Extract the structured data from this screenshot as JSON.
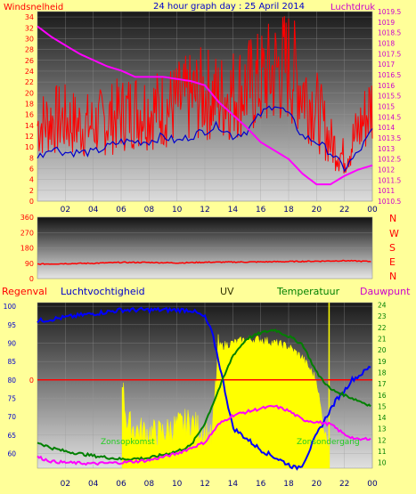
{
  "header": {
    "left_label": "Windsnelheid",
    "title": "24 hour graph day : 25 April 2014",
    "right_label": "Luchtdruk"
  },
  "mid_header": {
    "regenval": "Regenval",
    "vocht": "Luchtvochtigheid",
    "uv": "UV",
    "temp": "Temperatuur",
    "dauw": "Dauwpunt"
  },
  "annotations": {
    "sunrise": "Zonsopkomst",
    "sunset": "Zonsondergang"
  },
  "colors": {
    "wind": "#ff0000",
    "wind_avg": "#0000cc",
    "pressure": "#ff00ff",
    "humidity": "#0000ff",
    "temperature": "#008000",
    "dewpoint": "#ff00ff",
    "uv": "#ffff00",
    "rain": "#ff0000",
    "label_red": "#ff0000",
    "label_magenta": "#cc00cc",
    "label_blue": "#0000cc",
    "label_green": "#008000"
  },
  "chart_data": [
    {
      "type": "line",
      "x_ticks": [
        "02",
        "04",
        "06",
        "08",
        "10",
        "12",
        "14",
        "16",
        "18",
        "20",
        "22",
        "00"
      ],
      "xlim": [
        0,
        24
      ],
      "ylim_left": [
        0,
        35
      ],
      "y_ticks_left": [
        "0",
        "2",
        "4",
        "6",
        "8",
        "10",
        "12",
        "14",
        "16",
        "18",
        "20",
        "22",
        "24",
        "26",
        "28",
        "30",
        "32",
        "34"
      ],
      "ylim_right": [
        1010.5,
        1019.5
      ],
      "y_ticks_right": [
        "1010.5",
        "1011",
        "1011.5",
        "1012",
        "1012.5",
        "1013",
        "1013.5",
        "1014",
        "1014.5",
        "1015",
        "1015.5",
        "1016",
        "1016.5",
        "1017",
        "1017.5",
        "1018",
        "1018.5",
        "1019",
        "1019.5"
      ],
      "series": [
        {
          "name": "Windsnelheid",
          "axis": "left",
          "style": "noisy",
          "x": [
            0,
            1,
            2,
            3,
            4,
            5,
            6,
            7,
            8,
            9,
            10,
            11,
            12,
            13,
            14,
            15,
            16,
            17,
            18,
            19,
            20,
            21,
            22,
            23,
            24
          ],
          "y": [
            14,
            15,
            15,
            14,
            14,
            15,
            16,
            17,
            17,
            17,
            18,
            19,
            20,
            19,
            20,
            21,
            22,
            24,
            25,
            21,
            17,
            11,
            8,
            13,
            18
          ]
        },
        {
          "name": "Windgemiddelde",
          "axis": "left",
          "style": "smooth",
          "x": [
            0,
            1,
            2,
            3,
            4,
            5,
            6,
            7,
            8,
            9,
            10,
            11,
            12,
            13,
            14,
            15,
            16,
            17,
            18,
            19,
            20,
            21,
            22,
            23,
            24
          ],
          "y": [
            8,
            10,
            9,
            9,
            9,
            10,
            11,
            11,
            11,
            12,
            11,
            12,
            13,
            14,
            12,
            13,
            16,
            18,
            16,
            12,
            11,
            9,
            6,
            9,
            13
          ]
        },
        {
          "name": "Luchtdruk",
          "axis": "right",
          "style": "smooth",
          "x": [
            0,
            1,
            2,
            3,
            4,
            5,
            6,
            7,
            8,
            9,
            10,
            11,
            12,
            13,
            14,
            15,
            16,
            17,
            18,
            19,
            20,
            21,
            22,
            23,
            24
          ],
          "y": [
            1018.8,
            1018.3,
            1017.9,
            1017.5,
            1017.2,
            1016.9,
            1016.7,
            1016.4,
            1016.4,
            1016.4,
            1016.3,
            1016.2,
            1016.0,
            1015.2,
            1014.6,
            1014.0,
            1013.3,
            1012.9,
            1012.5,
            1011.8,
            1011.3,
            1011.3,
            1011.7,
            1012.0,
            1012.2
          ]
        }
      ]
    },
    {
      "type": "line",
      "x_ticks": [
        "02",
        "04",
        "06",
        "08",
        "10",
        "12",
        "14",
        "16",
        "18",
        "20",
        "22",
        "00"
      ],
      "xlim": [
        0,
        24
      ],
      "ylim": [
        0,
        360
      ],
      "y_ticks": [
        "0",
        "90",
        "180",
        "270",
        "360"
      ],
      "compass_labels": [
        "N",
        "W",
        "S",
        "E",
        "N"
      ],
      "series": [
        {
          "name": "Windrichting",
          "x": [
            0,
            2,
            4,
            6,
            8,
            10,
            12,
            14,
            16,
            18,
            20,
            22,
            24
          ],
          "y": [
            85,
            88,
            90,
            95,
            95,
            92,
            96,
            97,
            98,
            100,
            102,
            105,
            100
          ]
        }
      ]
    },
    {
      "type": "line",
      "x_ticks": [
        "02",
        "04",
        "06",
        "08",
        "10",
        "12",
        "14",
        "16",
        "18",
        "20",
        "22",
        "00"
      ],
      "xlim": [
        0,
        24
      ],
      "ylim_left": [
        56,
        101
      ],
      "y_ticks_left": [
        "60",
        "65",
        "70",
        "75",
        "80",
        "85",
        "90",
        "95",
        "100"
      ],
      "rain_label": "0",
      "ylim_right": [
        9.5,
        24.2
      ],
      "y_ticks_right": [
        "10",
        "11",
        "12",
        "13",
        "14",
        "15",
        "16",
        "17",
        "18",
        "19",
        "20",
        "21",
        "22",
        "23",
        "24"
      ],
      "series": [
        {
          "name": "Luchtvochtigheid",
          "axis": "left",
          "x": [
            0,
            2,
            4,
            6,
            8,
            10,
            11,
            12,
            12.5,
            13,
            13.5,
            14,
            15,
            16,
            17,
            18,
            18.5,
            19,
            20,
            21,
            21.5,
            22,
            22.5,
            23,
            24
          ],
          "y": [
            96,
            97,
            98,
            99,
            99,
            99,
            99,
            97,
            93,
            85,
            76,
            67,
            64,
            61,
            59,
            57,
            56,
            57,
            65,
            72,
            75,
            77,
            80,
            81,
            84
          ]
        },
        {
          "name": "Temperatuur",
          "axis": "right",
          "x": [
            0,
            1,
            2,
            4,
            6,
            8,
            10,
            11,
            12,
            13,
            14,
            15,
            16,
            17,
            18,
            19,
            20,
            21,
            22,
            23,
            24
          ],
          "y": [
            11.8,
            11.3,
            11.0,
            10.6,
            10.3,
            10.4,
            11.0,
            11.5,
            13.5,
            16.5,
            19.5,
            21.0,
            21.5,
            21.8,
            21.2,
            20.5,
            18.0,
            16.5,
            16.0,
            15.5,
            15.0
          ]
        },
        {
          "name": "Dauwpunt",
          "axis": "right",
          "x": [
            0,
            1,
            2,
            4,
            6,
            8,
            10,
            12,
            13,
            14,
            15,
            16,
            17,
            18,
            19,
            20,
            21,
            22,
            23,
            24
          ],
          "y": [
            10.5,
            10.1,
            10.0,
            9.9,
            10.0,
            10.2,
            10.8,
            11.8,
            13.4,
            14.2,
            14.5,
            14.8,
            15.0,
            14.6,
            13.8,
            13.6,
            13.4,
            12.5,
            12.0,
            12.2
          ]
        },
        {
          "name": "UV",
          "axis": "left",
          "style": "fill",
          "x": [
            6.1,
            6.4,
            7,
            8,
            9,
            10,
            11,
            12,
            12.5,
            13,
            14,
            15,
            16,
            17,
            18,
            19,
            20,
            20.5,
            20.9
          ],
          "y": [
            77,
            67,
            65,
            64,
            64,
            66,
            67,
            64,
            62,
            89,
            90,
            91,
            91,
            90,
            89,
            86,
            80,
            67,
            62
          ]
        }
      ]
    }
  ]
}
